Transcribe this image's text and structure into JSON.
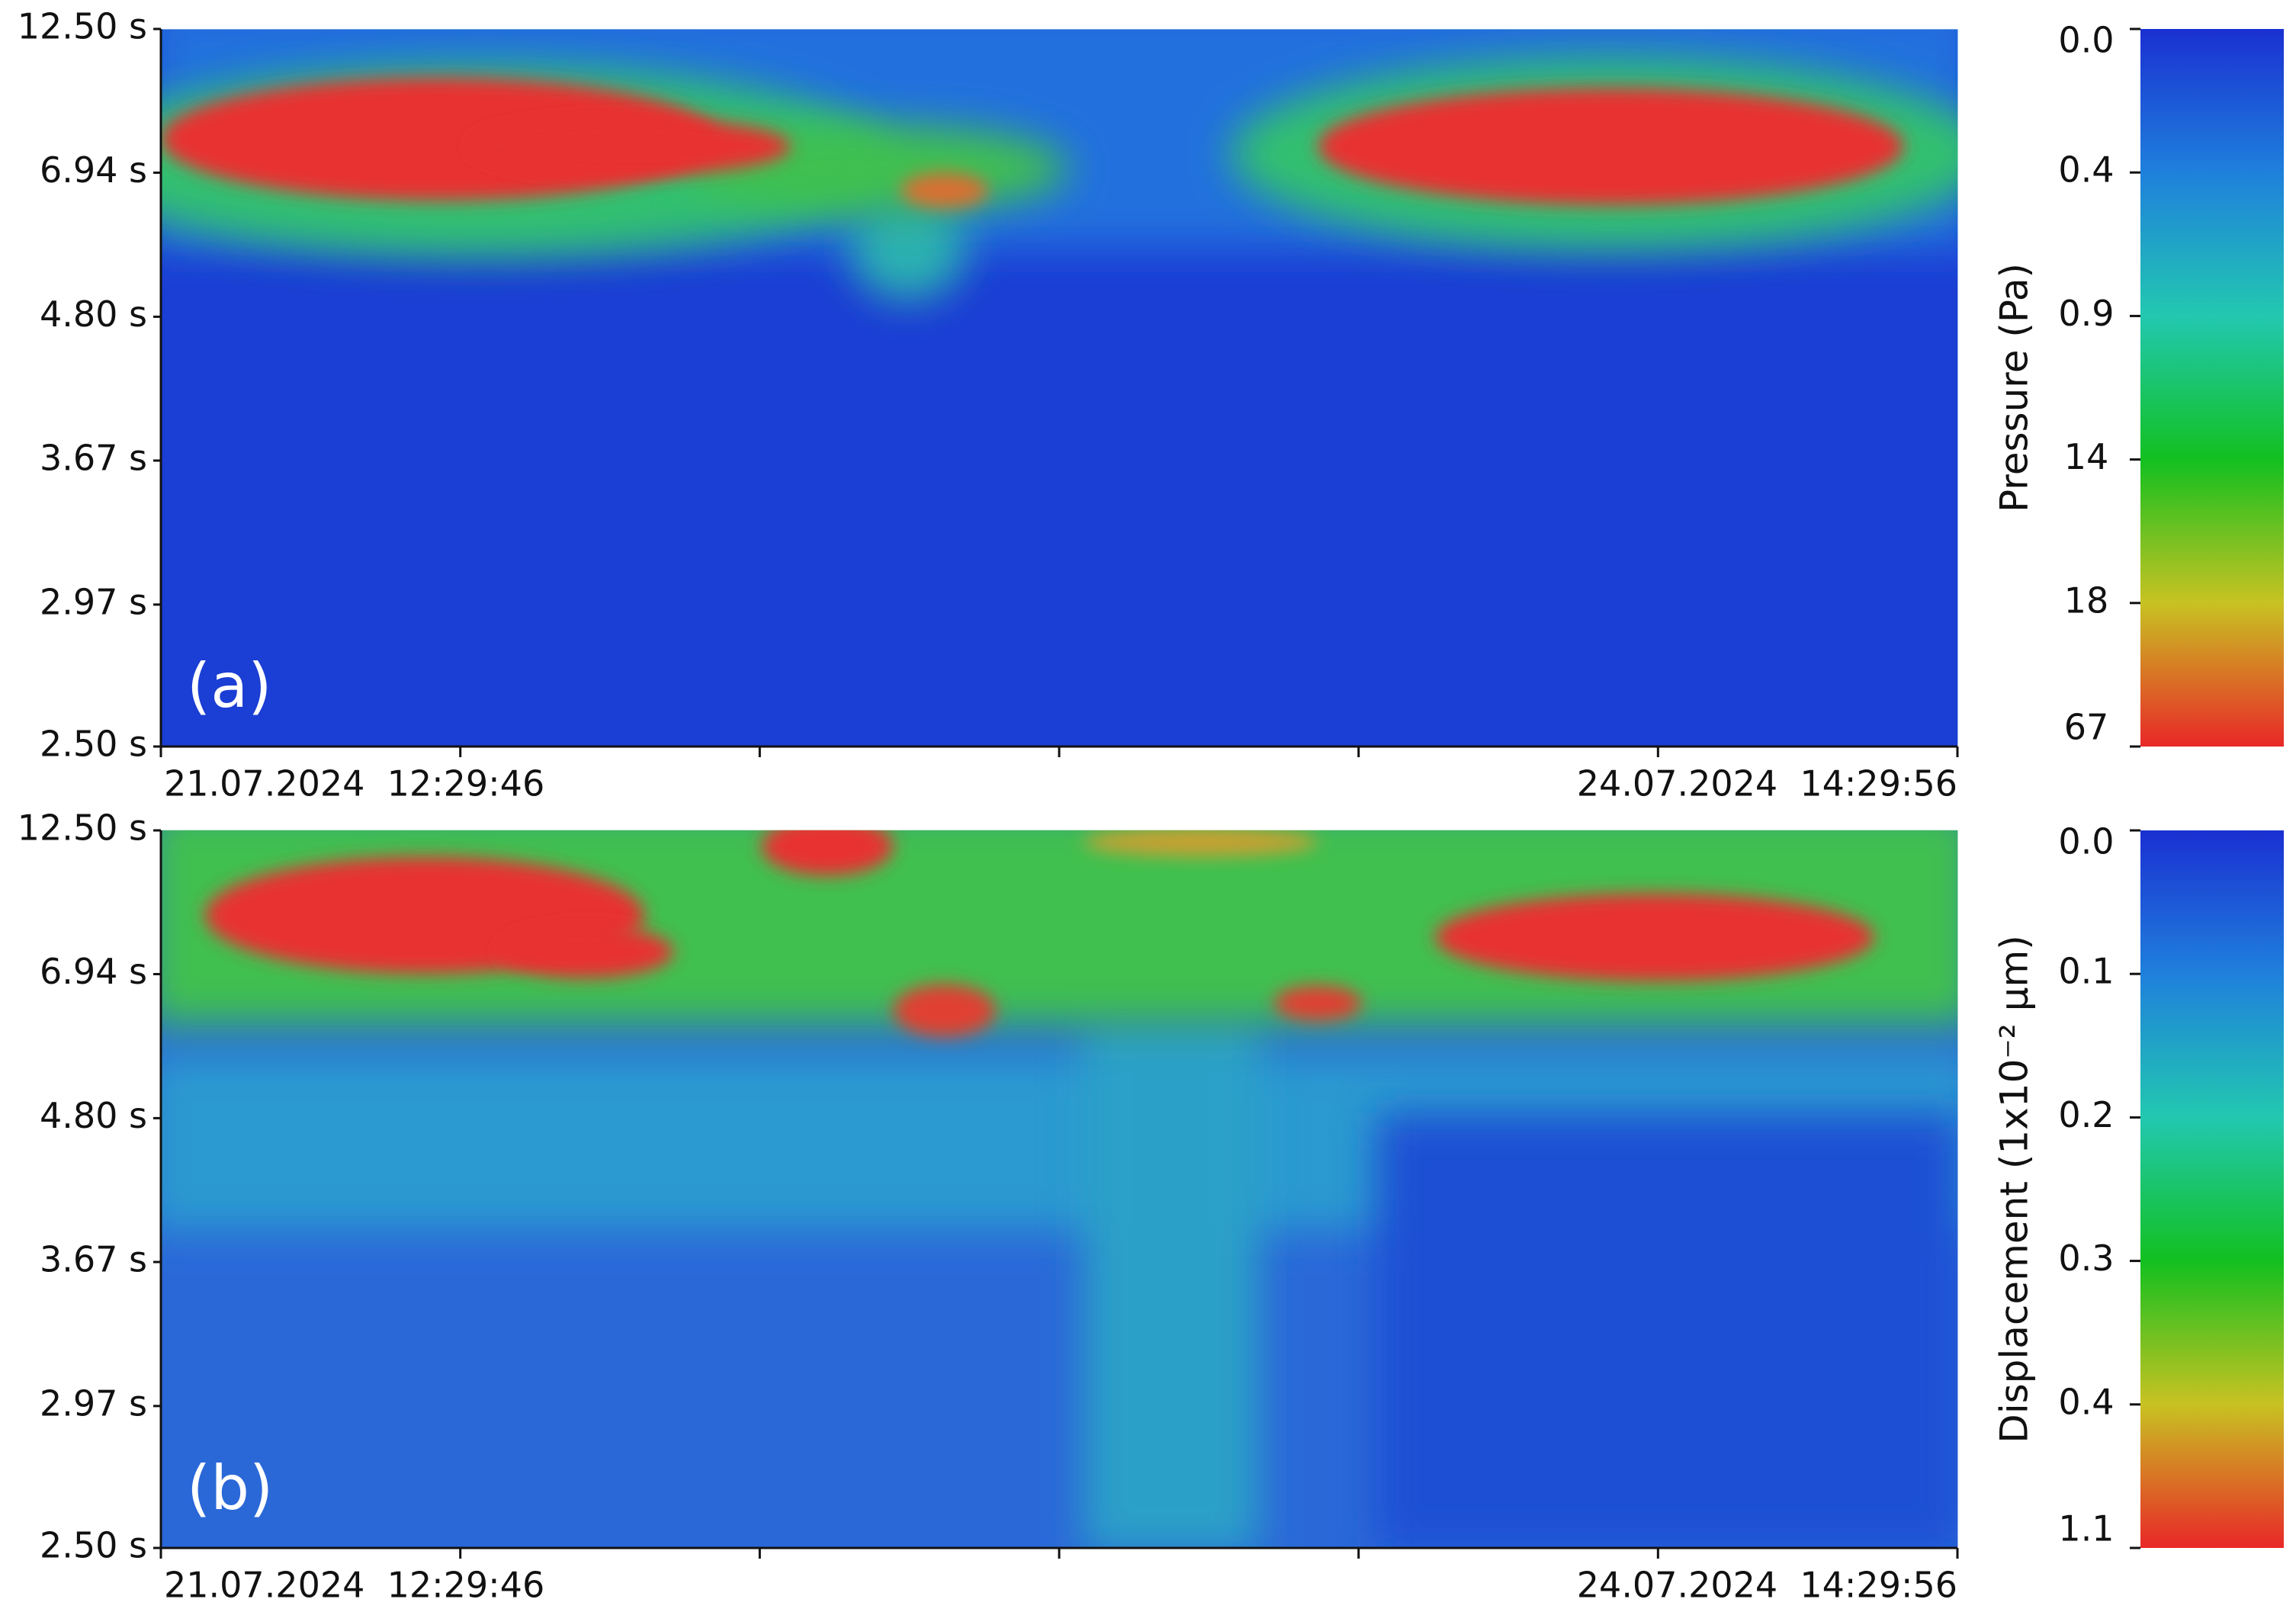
{
  "chart_data": [
    {
      "type": "heatmap",
      "annotation": "(a)",
      "yscale": "reciprocal",
      "ylim": [
        2.5,
        12.5
      ],
      "yticks": [
        {
          "value": 12.5,
          "label": "12.50 s"
        },
        {
          "value": 6.94,
          "label": "6.94 s"
        },
        {
          "value": 4.8,
          "label": "4.80 s"
        },
        {
          "value": 3.67,
          "label": "3.67 s"
        },
        {
          "value": 2.97,
          "label": "2.97 s"
        },
        {
          "value": 2.5,
          "label": "2.50 s"
        }
      ],
      "categories": [
        "21.07.2024  12:29:46",
        null,
        null,
        null,
        null,
        null,
        "24.07.2024  14:29:56"
      ],
      "colorbar": {
        "label": "Pressure (Pa)",
        "ticks": [
          {
            "value": 0.0,
            "label": "0.0"
          },
          0.4,
          0.9,
          14,
          18,
          67
        ]
      },
      "colormap": [
        "#1a30d2",
        "#1f80dc",
        "#22c8b0",
        "#12c020",
        "#c8c222",
        "#e82828"
      ]
    },
    {
      "type": "heatmap",
      "annotation": "(b)",
      "yscale": "reciprocal",
      "ylim": [
        2.5,
        12.5
      ],
      "yticks": [
        {
          "value": 12.5,
          "label": "12.50 s"
        },
        {
          "value": 6.94,
          "label": "6.94 s"
        },
        {
          "value": 4.8,
          "label": "4.80 s"
        },
        {
          "value": 3.67,
          "label": "3.67 s"
        },
        {
          "value": 2.97,
          "label": "2.97 s"
        },
        {
          "value": 2.5,
          "label": "2.50 s"
        }
      ],
      "categories": [
        "21.07.2024  12:29:46",
        null,
        null,
        null,
        null,
        null,
        "24.07.2024  14:29:56"
      ],
      "colorbar": {
        "label": "Displacement (1x10⁻² µm)",
        "ticks": [
          {
            "value": 0.0,
            "label": "0.0"
          },
          0.1,
          0.2,
          0.3,
          0.4,
          1.1
        ]
      },
      "colormap": [
        "#1a30d2",
        "#1f80dc",
        "#22c8b0",
        "#12c020",
        "#c8c222",
        "#e82828"
      ]
    }
  ]
}
